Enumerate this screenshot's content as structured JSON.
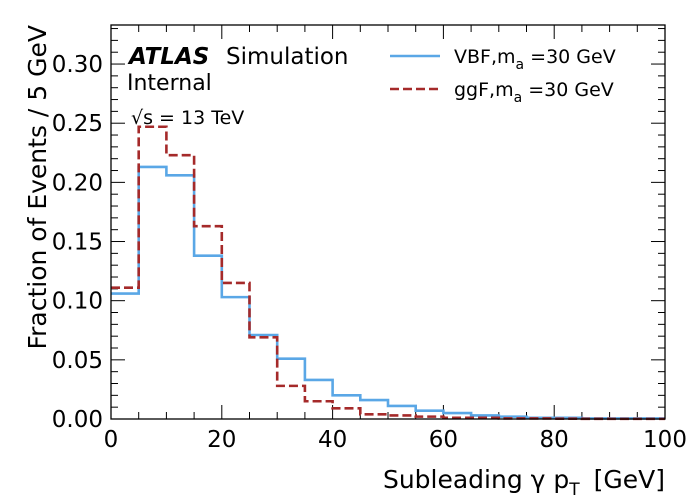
{
  "chart_data": {
    "type": "step-histogram",
    "experiment_label": "ATLAS",
    "status_label": "Simulation",
    "internal_label": "Internal",
    "energy_label": "√s = 13 TeV",
    "xlabel": "Subleading γ p",
    "xlabel_subscript": "T",
    "xlabel_unit": "[GeV]",
    "ylabel": "Fraction of Events / 5 GeV",
    "xlim": [
      0,
      100
    ],
    "ylim": [
      0,
      0.333
    ],
    "xticks": [
      "0",
      "20",
      "40",
      "60",
      "80",
      "100"
    ],
    "yticks": [
      "0.00",
      "0.05",
      "0.10",
      "0.15",
      "0.20",
      "0.25",
      "0.30"
    ],
    "bin_width": 5,
    "bin_edges": [
      0,
      5,
      10,
      15,
      20,
      25,
      30,
      35,
      40,
      45,
      50,
      55,
      60,
      65,
      70,
      75,
      80,
      85,
      90,
      95,
      100
    ],
    "legend_position": "top-right",
    "series": [
      {
        "name": "VBF,m",
        "name_subscript": "a",
        "name_suffix": " =30 GeV",
        "color": "#5aa7e6",
        "style": "solid",
        "values": [
          0.106,
          0.213,
          0.206,
          0.138,
          0.103,
          0.071,
          0.051,
          0.033,
          0.02,
          0.016,
          0.011,
          0.007,
          0.005,
          0.003,
          0.002,
          0.001,
          0.001,
          0.0005,
          0.0005,
          0.0005
        ]
      },
      {
        "name": "ggF,m",
        "name_subscript": "a",
        "name_suffix": " =30 GeV",
        "color": "#a52a2a",
        "style": "dashed",
        "values": [
          0.111,
          0.247,
          0.223,
          0.163,
          0.115,
          0.069,
          0.028,
          0.015,
          0.009,
          0.004,
          0.003,
          0.002,
          0.001,
          0.001,
          0.0005,
          0.0005,
          0.0003,
          0.0002,
          0.0001,
          0.0001
        ]
      }
    ]
  }
}
